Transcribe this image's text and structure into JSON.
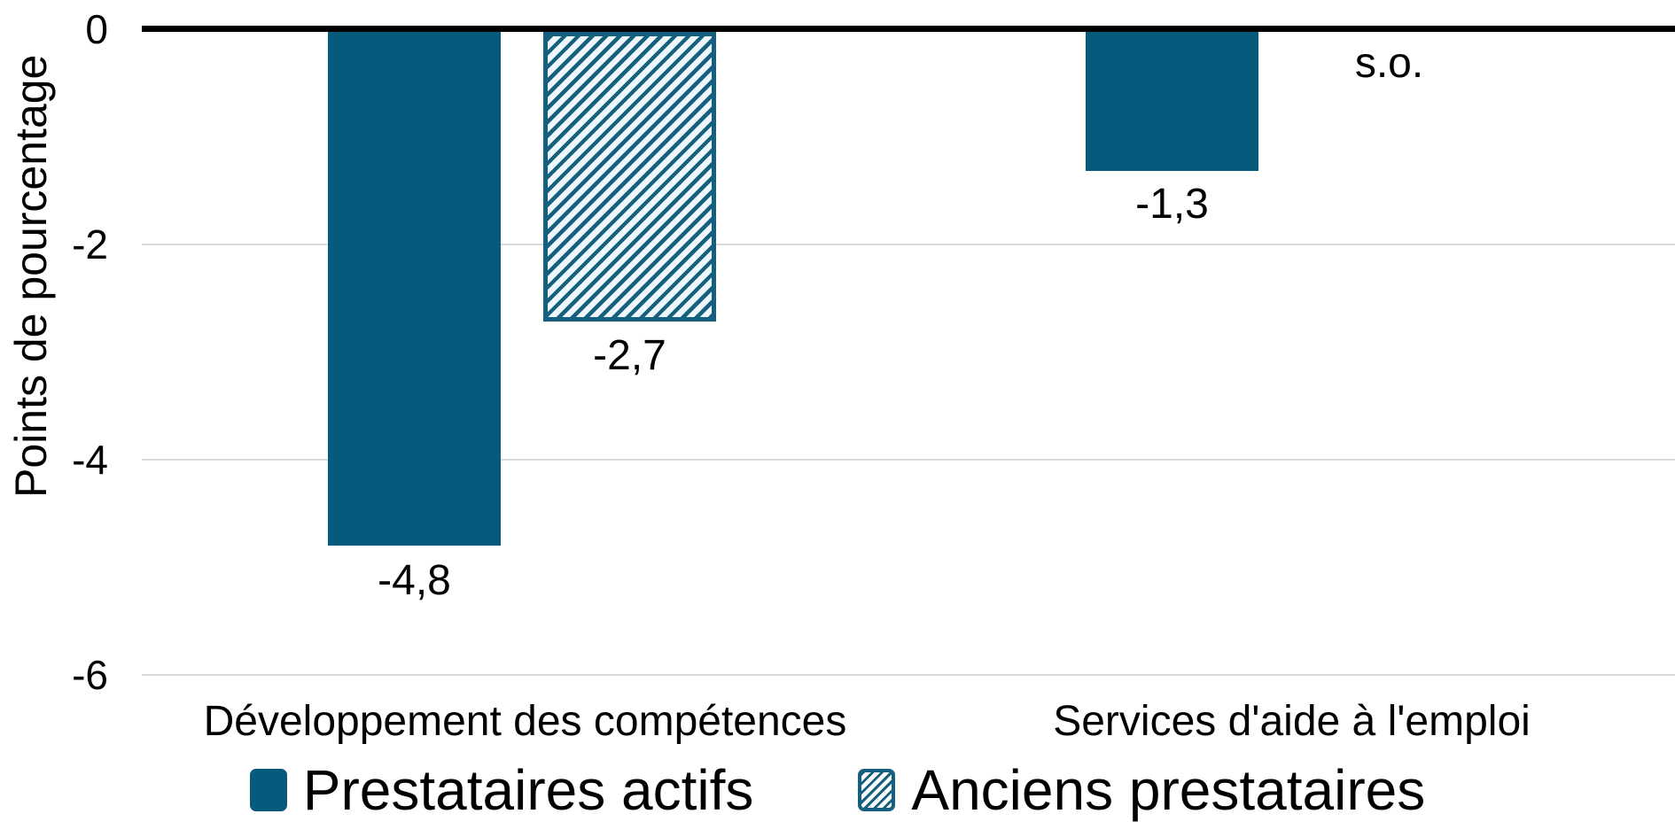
{
  "chart_data": {
    "type": "bar",
    "title": "",
    "ylabel": "Points de pourcentage",
    "xlabel": "",
    "categories": [
      "Développement des compétences",
      "Services d'aide à l'emploi"
    ],
    "series": [
      {
        "name": "Prestataires actifs",
        "pattern": "solid",
        "values": [
          -4.8,
          -1.3
        ],
        "labels": [
          "-4,8",
          "-1,3"
        ]
      },
      {
        "name": "Anciens prestataires",
        "pattern": "hatched-diagonal",
        "values": [
          -2.7,
          null
        ],
        "labels": [
          "-2,7",
          "s.o."
        ]
      }
    ],
    "not_applicable_label": "s.o.",
    "yticks": [
      "0",
      "-2",
      "-4",
      "-6"
    ],
    "ylim": [
      -6.5,
      0
    ],
    "grid": true,
    "legend_position": "bottom",
    "decimal_separator": ","
  },
  "colors": {
    "bar_solid": "#065B7D",
    "hatch_stripe": "#15607F",
    "hatch_bg": "#EEF8FC",
    "axis": "#000000",
    "gridline": "#D9D9D9",
    "text": "#000000"
  }
}
